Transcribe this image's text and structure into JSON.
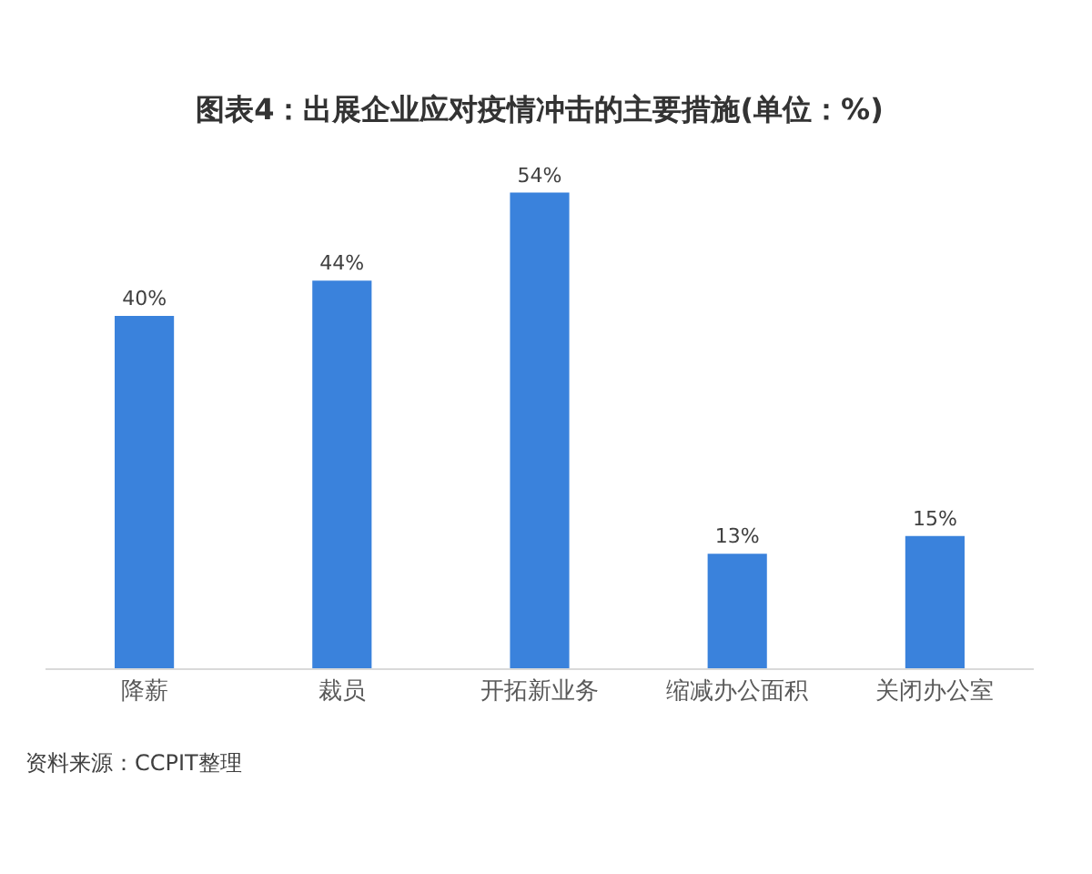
{
  "chart_data": {
    "type": "bar",
    "title": "图表4：出展企业应对疫情冲击的主要措施(单位：%)",
    "categories": [
      "降薪",
      "裁员",
      "开拓新业务",
      "缩减办公面积",
      "关闭办公室"
    ],
    "values": [
      40,
      44,
      54,
      13,
      15
    ],
    "color": "#3a82dc",
    "value_labels": [
      "40%",
      "44%",
      "54%",
      "13%",
      "15%"
    ],
    "tick_labels": "x",
    "annotations": [
      "资料来源：CCPIT整理"
    ]
  }
}
